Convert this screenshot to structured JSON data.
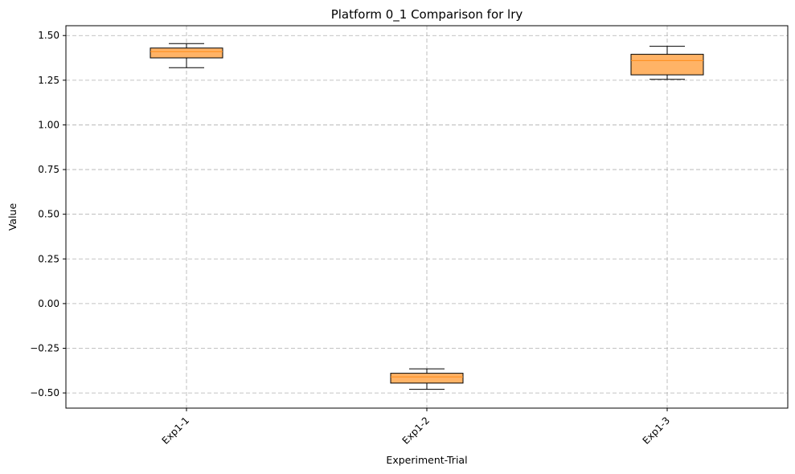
{
  "chart_data": {
    "type": "boxplot",
    "title": "Platform 0_1 Comparison for lry",
    "xlabel": "Experiment-Trial",
    "ylabel": "Value",
    "categories": [
      "Exp1-1",
      "Exp1-2",
      "Exp1-3"
    ],
    "boxes": [
      {
        "category": "Exp1-1",
        "whisker_low": 1.32,
        "q1": 1.375,
        "median": 1.41,
        "q3": 1.43,
        "whisker_high": 1.455
      },
      {
        "category": "Exp1-2",
        "whisker_low": -0.48,
        "q1": -0.445,
        "median": -0.41,
        "q3": -0.39,
        "whisker_high": -0.365
      },
      {
        "category": "Exp1-3",
        "whisker_low": 1.255,
        "q1": 1.28,
        "median": 1.36,
        "q3": 1.395,
        "whisker_high": 1.44
      }
    ],
    "yticks": [
      -0.5,
      -0.25,
      0.0,
      0.25,
      0.5,
      0.75,
      1.0,
      1.25,
      1.5
    ],
    "ytick_labels": [
      "−0.50",
      "−0.25",
      "0.00",
      "0.25",
      "0.50",
      "0.75",
      "1.00",
      "1.25",
      "1.50"
    ],
    "ylim": [
      -0.585,
      1.555
    ],
    "grid": true,
    "colors": {
      "box_fill": "#ffb366",
      "median_line": "#ff8c1a",
      "grid": "#b0b0b0"
    }
  }
}
